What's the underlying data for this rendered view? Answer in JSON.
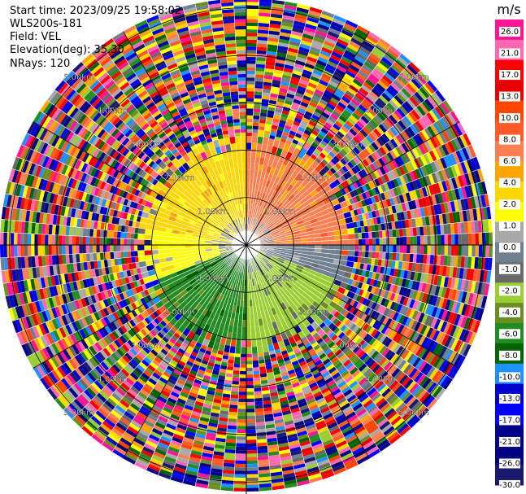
{
  "header": {
    "start_time": "Start time: 2023/09/25 19:58:02",
    "instrument": "WLS200s-181",
    "field": "Field: VEL",
    "elevation": "Elevation(deg): 35.30",
    "nrays": "NRays: 120"
  },
  "chart_data": {
    "type": "heatmap",
    "projection": "polar-ppi",
    "title": "",
    "field": "VEL",
    "n_rays": 120,
    "elevation_deg": 35.3,
    "ring_labels": [
      "1.00km",
      "2.00km",
      "3.00km",
      "4.00km",
      "5.00km"
    ],
    "ring_distances_km": [
      1,
      2,
      3,
      4,
      5
    ],
    "max_range_km": 5.2,
    "noise_start_km": 2.3,
    "colorbar": {
      "unit": "m/s",
      "tick_labels": [
        "26.0",
        "21.0",
        "17.0",
        "13.0",
        "10.0",
        "8.0",
        "6.0",
        "4.0",
        "2.0",
        "1.0",
        "0.0",
        "-1.0",
        "-2.0",
        "-4.0",
        "-6.0",
        "-8.0",
        "-10.0",
        "-13.0",
        "-17.0",
        "-21.0",
        "-26.0",
        "-30.0"
      ],
      "colors": [
        "#ff1493",
        "#ff69b4",
        "#ff0000",
        "#e60000",
        "#ff4500",
        "#ff5a2a",
        "#ff7f50",
        "#ffa500",
        "#ffd700",
        "#ffff00",
        "#a9a9a9",
        "#708090",
        "#696969",
        "#9acd32",
        "#6b8e23",
        "#228b22",
        "#006400",
        "#1e90ff",
        "#0000cd",
        "#0000ff",
        "#00008b",
        "#000080",
        "#191970"
      ]
    },
    "velocity_sectors": [
      {
        "from_deg": 0,
        "to_deg": 90,
        "range_km": [
          0.3,
          2.3
        ],
        "velocity": "4.0 to 8.0",
        "color": "#ff7f50"
      },
      {
        "from_deg": 90,
        "to_deg": 110,
        "range_km": [
          0.3,
          2.3
        ],
        "velocity": "0.0 to -1.0",
        "color": "#708090"
      },
      {
        "from_deg": 110,
        "to_deg": 180,
        "range_km": [
          0.3,
          2.3
        ],
        "velocity": "-2.0 to -4.0",
        "color": "#9acd32"
      },
      {
        "from_deg": 180,
        "to_deg": 250,
        "range_km": [
          0.3,
          2.3
        ],
        "velocity": "-4.0 to -8.0",
        "color": "#228b22"
      },
      {
        "from_deg": 250,
        "to_deg": 280,
        "range_km": [
          0.3,
          2.3
        ],
        "velocity": "1.0 to 2.0",
        "color": "#ffff00"
      },
      {
        "from_deg": 280,
        "to_deg": 360,
        "range_km": [
          0.3,
          2.3
        ],
        "velocity": "2.0 to 6.0",
        "color": "#ffd700"
      }
    ]
  }
}
